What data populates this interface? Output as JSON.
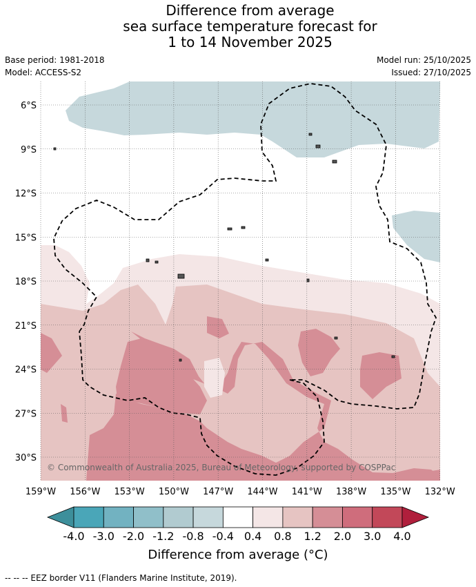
{
  "title": {
    "line1": "Difference from average",
    "line2": "sea surface temperature forecast for",
    "line3": "1 to 14 November 2025"
  },
  "meta": {
    "base_period": "Base period: 1981-2018",
    "model": "Model: ACCESS-S2",
    "model_run": "Model run: 25/10/2025",
    "issued": "Issued: 27/10/2025"
  },
  "map": {
    "lat_labels": [
      "6°S",
      "9°S",
      "12°S",
      "15°S",
      "18°S",
      "21°S",
      "24°S",
      "27°S",
      "30°S"
    ],
    "lon_labels": [
      "159°W",
      "156°W",
      "153°W",
      "150°W",
      "147°W",
      "144°W",
      "141°W",
      "138°W",
      "135°W",
      "132°W"
    ],
    "copyright": "© Commonwealth of Australia 2025, Bureau of Meteorology, supported by COSPPac"
  },
  "colorbar": {
    "colors": [
      "#3d8f9b",
      "#4aa6b8",
      "#72b2c1",
      "#90bfc9",
      "#b1cbd0",
      "#c6d8dc",
      "#ffffff",
      "#f4e6e6",
      "#e6c4c2",
      "#d58e96",
      "#cf6d7c",
      "#c24859",
      "#b01f3c"
    ],
    "ticks": [
      "-4.0",
      "-3.0",
      "-2.0",
      "-1.2",
      "-0.8",
      "-0.4",
      "0.4",
      "0.8",
      "1.2",
      "2.0",
      "3.0",
      "4.0"
    ],
    "title": "Difference from average (°C)"
  },
  "footer": "-- -- -- EEZ border V11 (Flanders Marine Institute, 2019)."
}
